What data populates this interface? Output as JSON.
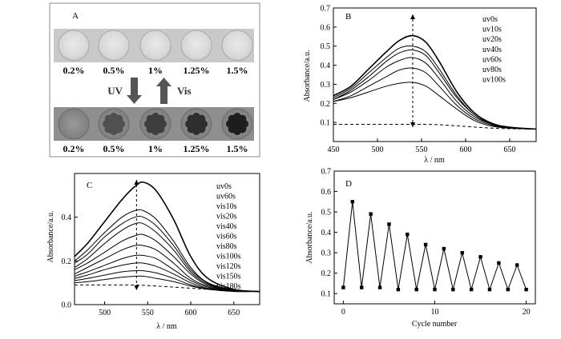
{
  "chart_data": [
    {
      "panel": "A",
      "type": "other",
      "top_row_labels": [
        "0.2%",
        "0.5%",
        "1%",
        "1.25%",
        "1.5%"
      ],
      "bottom_row_labels": [
        "0.2%",
        "0.5%",
        "1%",
        "1.25%",
        "1.5%"
      ],
      "arrow_down_label": "UV",
      "arrow_up_label": "Vis"
    },
    {
      "panel": "B",
      "type": "line",
      "xlabel": "λ / nm",
      "ylabel": "Absorbance/a.u.",
      "xlim": [
        450,
        680
      ],
      "ylim": [
        0,
        0.7
      ],
      "xticks": [
        "450",
        "500",
        "550",
        "600",
        "650"
      ],
      "yticks": [
        "0.1",
        "0.2",
        "0.3",
        "0.4",
        "0.5",
        "0.6",
        "0.7"
      ],
      "legend_position": "top-right",
      "x": [
        450,
        470,
        490,
        510,
        525,
        540,
        555,
        570,
        590,
        610,
        630,
        650,
        680
      ],
      "series": [
        {
          "name": "uv0s",
          "values": [
            0.09,
            0.09,
            0.09,
            0.09,
            0.09,
            0.09,
            0.09,
            0.088,
            0.082,
            0.076,
            0.07,
            0.067,
            0.065
          ]
        },
        {
          "name": "uv10s",
          "values": [
            0.21,
            0.23,
            0.26,
            0.29,
            0.305,
            0.31,
            0.29,
            0.24,
            0.17,
            0.11,
            0.08,
            0.07,
            0.065
          ]
        },
        {
          "name": "uv20s",
          "values": [
            0.21,
            0.24,
            0.29,
            0.34,
            0.375,
            0.385,
            0.36,
            0.29,
            0.19,
            0.12,
            0.085,
            0.07,
            0.065
          ]
        },
        {
          "name": "uv40s",
          "values": [
            0.22,
            0.26,
            0.32,
            0.39,
            0.425,
            0.44,
            0.41,
            0.33,
            0.21,
            0.13,
            0.09,
            0.072,
            0.065
          ]
        },
        {
          "name": "uv60s",
          "values": [
            0.22,
            0.27,
            0.34,
            0.42,
            0.465,
            0.48,
            0.45,
            0.36,
            0.23,
            0.14,
            0.09,
            0.073,
            0.065
          ]
        },
        {
          "name": "uv80s",
          "values": [
            0.23,
            0.28,
            0.36,
            0.44,
            0.49,
            0.5,
            0.47,
            0.38,
            0.24,
            0.14,
            0.092,
            0.074,
            0.065
          ]
        },
        {
          "name": "uv100s",
          "values": [
            0.24,
            0.29,
            0.38,
            0.47,
            0.53,
            0.555,
            0.52,
            0.42,
            0.26,
            0.15,
            0.095,
            0.075,
            0.065
          ]
        }
      ],
      "annotation": "dashed arrow at 540 nm pointing up and down"
    },
    {
      "panel": "C",
      "type": "line",
      "xlabel": "λ / nm",
      "ylabel": "Absorbance/a.u.",
      "xlim": [
        465,
        680
      ],
      "ylim": [
        0,
        0.6
      ],
      "xticks": [
        "500",
        "550",
        "600",
        "650"
      ],
      "yticks": [
        "0.0",
        "0.2",
        "0.4"
      ],
      "legend_position": "top-right",
      "x": [
        465,
        480,
        500,
        520,
        535,
        545,
        560,
        580,
        600,
        620,
        650,
        680
      ],
      "series": [
        {
          "name": "uv0s",
          "values": [
            0.22,
            0.28,
            0.38,
            0.48,
            0.54,
            0.56,
            0.52,
            0.39,
            0.22,
            0.12,
            0.07,
            0.06
          ]
        },
        {
          "name": "uv60s",
          "values": [
            0.09,
            0.09,
            0.09,
            0.09,
            0.09,
            0.088,
            0.085,
            0.08,
            0.075,
            0.07,
            0.065,
            0.06
          ]
        },
        {
          "name": "vis10s",
          "values": [
            0.2,
            0.25,
            0.33,
            0.4,
            0.43,
            0.43,
            0.39,
            0.29,
            0.17,
            0.1,
            0.068,
            0.06
          ]
        },
        {
          "name": "vis20s",
          "values": [
            0.19,
            0.23,
            0.31,
            0.37,
            0.4,
            0.4,
            0.36,
            0.27,
            0.16,
            0.1,
            0.067,
            0.06
          ]
        },
        {
          "name": "vis40s",
          "values": [
            0.17,
            0.21,
            0.28,
            0.34,
            0.37,
            0.37,
            0.33,
            0.25,
            0.15,
            0.095,
            0.066,
            0.06
          ]
        },
        {
          "name": "vis60s",
          "values": [
            0.16,
            0.19,
            0.24,
            0.29,
            0.315,
            0.32,
            0.29,
            0.22,
            0.14,
            0.09,
            0.065,
            0.06
          ]
        },
        {
          "name": "vis80s",
          "values": [
            0.14,
            0.17,
            0.21,
            0.25,
            0.27,
            0.27,
            0.25,
            0.19,
            0.12,
            0.085,
            0.064,
            0.06
          ]
        },
        {
          "name": "vis100s",
          "values": [
            0.13,
            0.15,
            0.18,
            0.21,
            0.225,
            0.225,
            0.21,
            0.16,
            0.11,
            0.08,
            0.063,
            0.06
          ]
        },
        {
          "name": "vis120s",
          "values": [
            0.12,
            0.135,
            0.16,
            0.18,
            0.19,
            0.19,
            0.175,
            0.14,
            0.1,
            0.075,
            0.062,
            0.06
          ]
        },
        {
          "name": "vis150s",
          "values": [
            0.11,
            0.12,
            0.135,
            0.15,
            0.155,
            0.155,
            0.145,
            0.12,
            0.09,
            0.072,
            0.061,
            0.06
          ]
        },
        {
          "name": "vis180s",
          "values": [
            0.1,
            0.105,
            0.115,
            0.125,
            0.13,
            0.13,
            0.12,
            0.105,
            0.085,
            0.07,
            0.06,
            0.06
          ]
        }
      ],
      "annotation": "dashed arrow at 537 nm pointing up and down"
    },
    {
      "panel": "D",
      "type": "line",
      "xlabel": "Cycle number",
      "ylabel": "Absorbance/a.u.",
      "xlim": [
        -1,
        21
      ],
      "ylim": [
        0.05,
        0.7
      ],
      "xticks": [
        "0",
        "10",
        "20"
      ],
      "yticks": [
        "0.1",
        "0.2",
        "0.3",
        "0.4",
        "0.5",
        "0.6",
        "0.7"
      ],
      "x": [
        0,
        1,
        2,
        3,
        4,
        5,
        6,
        7,
        8,
        9,
        10,
        11,
        12,
        13,
        14,
        15,
        16,
        17,
        18,
        19,
        20
      ],
      "values": [
        0.13,
        0.55,
        0.13,
        0.49,
        0.13,
        0.44,
        0.12,
        0.39,
        0.12,
        0.34,
        0.12,
        0.32,
        0.12,
        0.3,
        0.12,
        0.28,
        0.12,
        0.25,
        0.12,
        0.24,
        0.12
      ]
    }
  ]
}
